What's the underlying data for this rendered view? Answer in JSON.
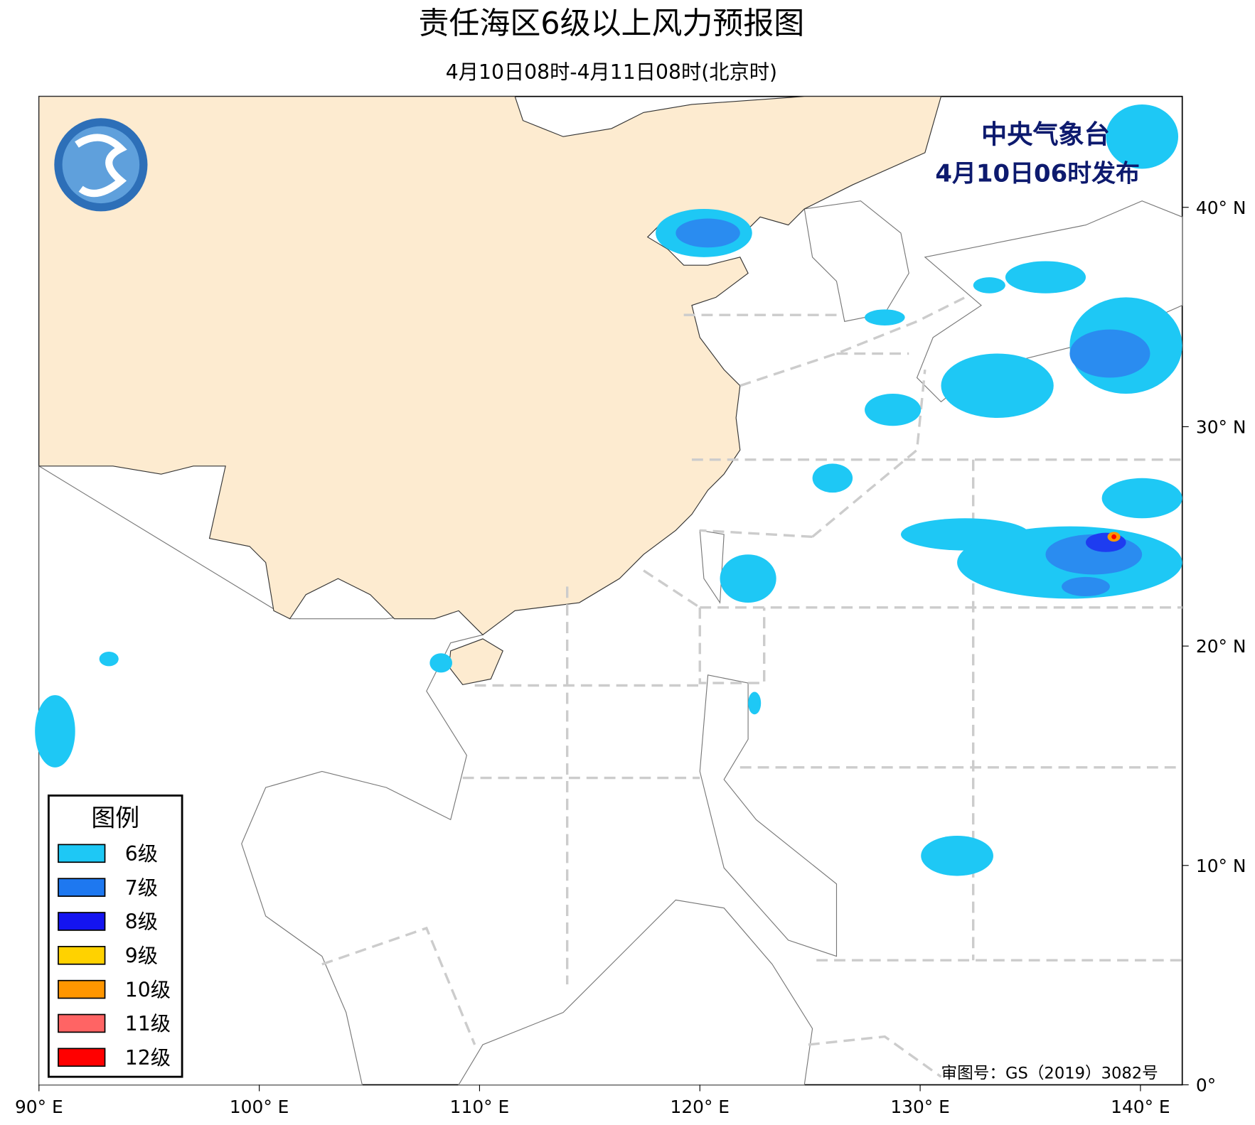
{
  "header": {
    "title": "责任海区6级以上风力预报图",
    "subtitle": "4月10日08时-4月11日08时(北京时)"
  },
  "issuer": {
    "name": "中央气象台",
    "time": "4月10日06时发布"
  },
  "legend": {
    "title": "图例",
    "items": [
      {
        "label": "6级",
        "color": "#1ec8f5"
      },
      {
        "label": "7级",
        "color": "#1e78f0"
      },
      {
        "label": "8级",
        "color": "#1414f0"
      },
      {
        "label": "9级",
        "color": "#ffd200"
      },
      {
        "label": "10级",
        "color": "#ff9600"
      },
      {
        "label": "11级",
        "color": "#ff6464"
      },
      {
        "label": "12级",
        "color": "#ff0000"
      }
    ]
  },
  "axes": {
    "x_labels": [
      "90° E",
      "100° E",
      "110° E",
      "120° E",
      "130° E",
      "140° E"
    ],
    "y_labels": [
      "40° N",
      "30° N",
      "20° N",
      "10° N",
      "0°"
    ]
  },
  "approval": "审图号：GS（2019）3082号"
}
